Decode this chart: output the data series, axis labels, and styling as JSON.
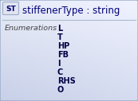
{
  "title": "stiffenerType : string",
  "badge_text": "ST",
  "section_label": "Enumerations",
  "enumerations": [
    "L",
    "T",
    "HP",
    "FB",
    "I",
    "C",
    "RHS",
    "O"
  ],
  "bg_color": "#d8dff0",
  "bg_color_top": "#e8ecf8",
  "bg_color_bottom": "#c8d0e8",
  "border_color": "#9aaac8",
  "badge_bg": "#e0e4f0",
  "badge_border": "#9aaac8",
  "title_color": "#000077",
  "enum_color": "#000044",
  "section_color": "#444444",
  "divider_color": "#aabbcc",
  "title_fontsize": 8.5,
  "badge_fontsize": 6.5,
  "enum_fontsize": 7.0,
  "section_fontsize": 6.8,
  "fig_width": 1.73,
  "fig_height": 1.27,
  "dpi": 100
}
